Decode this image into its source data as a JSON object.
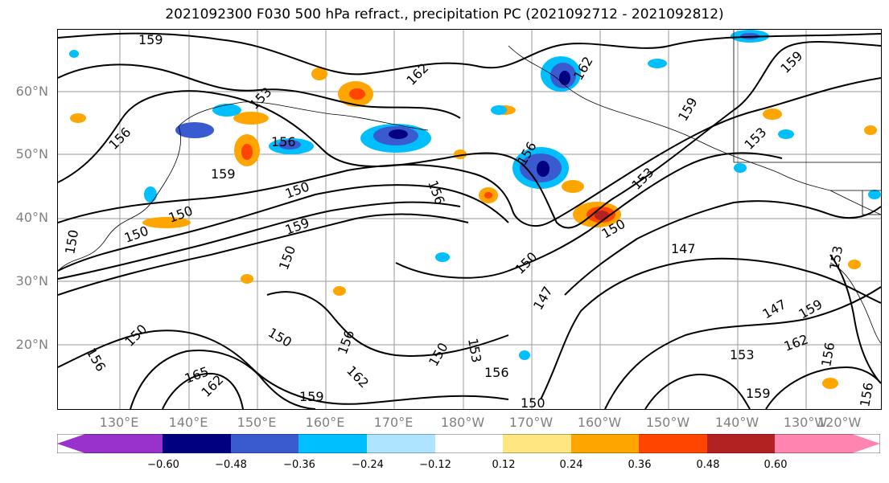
{
  "title": "2021092300 F030 500 hPa refract., precipitation PC (2021092712 - 2021092812)",
  "lat_labels": [
    "60°N",
    "50°N",
    "40°N",
    "30°N",
    "20°N"
  ],
  "lon_labels": [
    "130°E",
    "140°E",
    "150°E",
    "160°E",
    "170°E",
    "180°W",
    "170°W",
    "160°W",
    "150°W",
    "140°W",
    "130°W",
    "120°W"
  ],
  "contour_labels": [
    "159",
    "156",
    "153",
    "162",
    "150",
    "147",
    "165"
  ],
  "colorbar": {
    "colors": [
      "#9932cc",
      "#000080",
      "#3a5bcf",
      "#00bfff",
      "#aee4ff",
      "#ffffff",
      "#ffe680",
      "#ffa500",
      "#ff4500",
      "#b22222",
      "#ff85b0"
    ],
    "tick_labels": [
      "−0.60",
      "−0.48",
      "−0.36",
      "−0.24",
      "−0.12",
      "0.12",
      "0.24",
      "0.36",
      "0.48",
      "0.60"
    ]
  }
}
